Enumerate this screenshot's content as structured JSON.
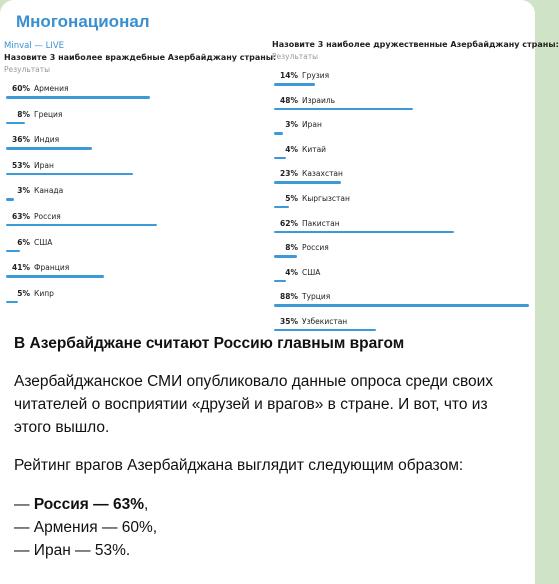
{
  "channel_name": "Многонационал",
  "poll_left": {
    "brand": "Minval — LIVE",
    "question": "Назовите 3 наиболее враждебные Азербайджану страны:",
    "results_label": "Результаты",
    "options": [
      {
        "pct": "60%",
        "label": "Армения",
        "value": 60
      },
      {
        "pct": "8%",
        "label": "Греция",
        "value": 8
      },
      {
        "pct": "36%",
        "label": "Индия",
        "value": 36
      },
      {
        "pct": "53%",
        "label": "Иран",
        "value": 53
      },
      {
        "pct": "3%",
        "label": "Канада",
        "value": 3
      },
      {
        "pct": "63%",
        "label": "Россия",
        "value": 63
      },
      {
        "pct": "6%",
        "label": "США",
        "value": 6
      },
      {
        "pct": "41%",
        "label": "Франция",
        "value": 41
      },
      {
        "pct": "5%",
        "label": "Кипр",
        "value": 5
      }
    ]
  },
  "poll_right": {
    "question": "Назовите 3 наиболее дружественные Азербайджану страны:",
    "results_label": "Результаты",
    "options": [
      {
        "pct": "14%",
        "label": "Грузия",
        "value": 14
      },
      {
        "pct": "48%",
        "label": "Израиль",
        "value": 48
      },
      {
        "pct": "3%",
        "label": "Иран",
        "value": 3
      },
      {
        "pct": "4%",
        "label": "Китай",
        "value": 4
      },
      {
        "pct": "23%",
        "label": "Казахстан",
        "value": 23
      },
      {
        "pct": "5%",
        "label": "Кыргызстан",
        "value": 5
      },
      {
        "pct": "62%",
        "label": "Пакистан",
        "value": 62
      },
      {
        "pct": "8%",
        "label": "Россия",
        "value": 8
      },
      {
        "pct": "4%",
        "label": "США",
        "value": 4
      },
      {
        "pct": "88%",
        "label": "Турция",
        "value": 88
      },
      {
        "pct": "35%",
        "label": "Узбекистан",
        "value": 35
      }
    ]
  },
  "article": {
    "headline": "В Азербайджане считают Россию главным врагом",
    "para1": "Азербайджанское СМИ опубликовало данные опроса среди своих читателей о восприятии «друзей и врагов» в стране. И вот, что из этого вышло.",
    "para2": "Рейтинг врагов Азербайджана выглядит следующим образом:",
    "list": [
      {
        "prefix": "— ",
        "text": "Россия — 63%",
        "suffix": ","
      },
      {
        "prefix": "",
        "text": "— Армения — 60%,",
        "suffix": ""
      },
      {
        "prefix": "",
        "text": "— Иран — 53%.",
        "suffix": ""
      }
    ]
  }
}
